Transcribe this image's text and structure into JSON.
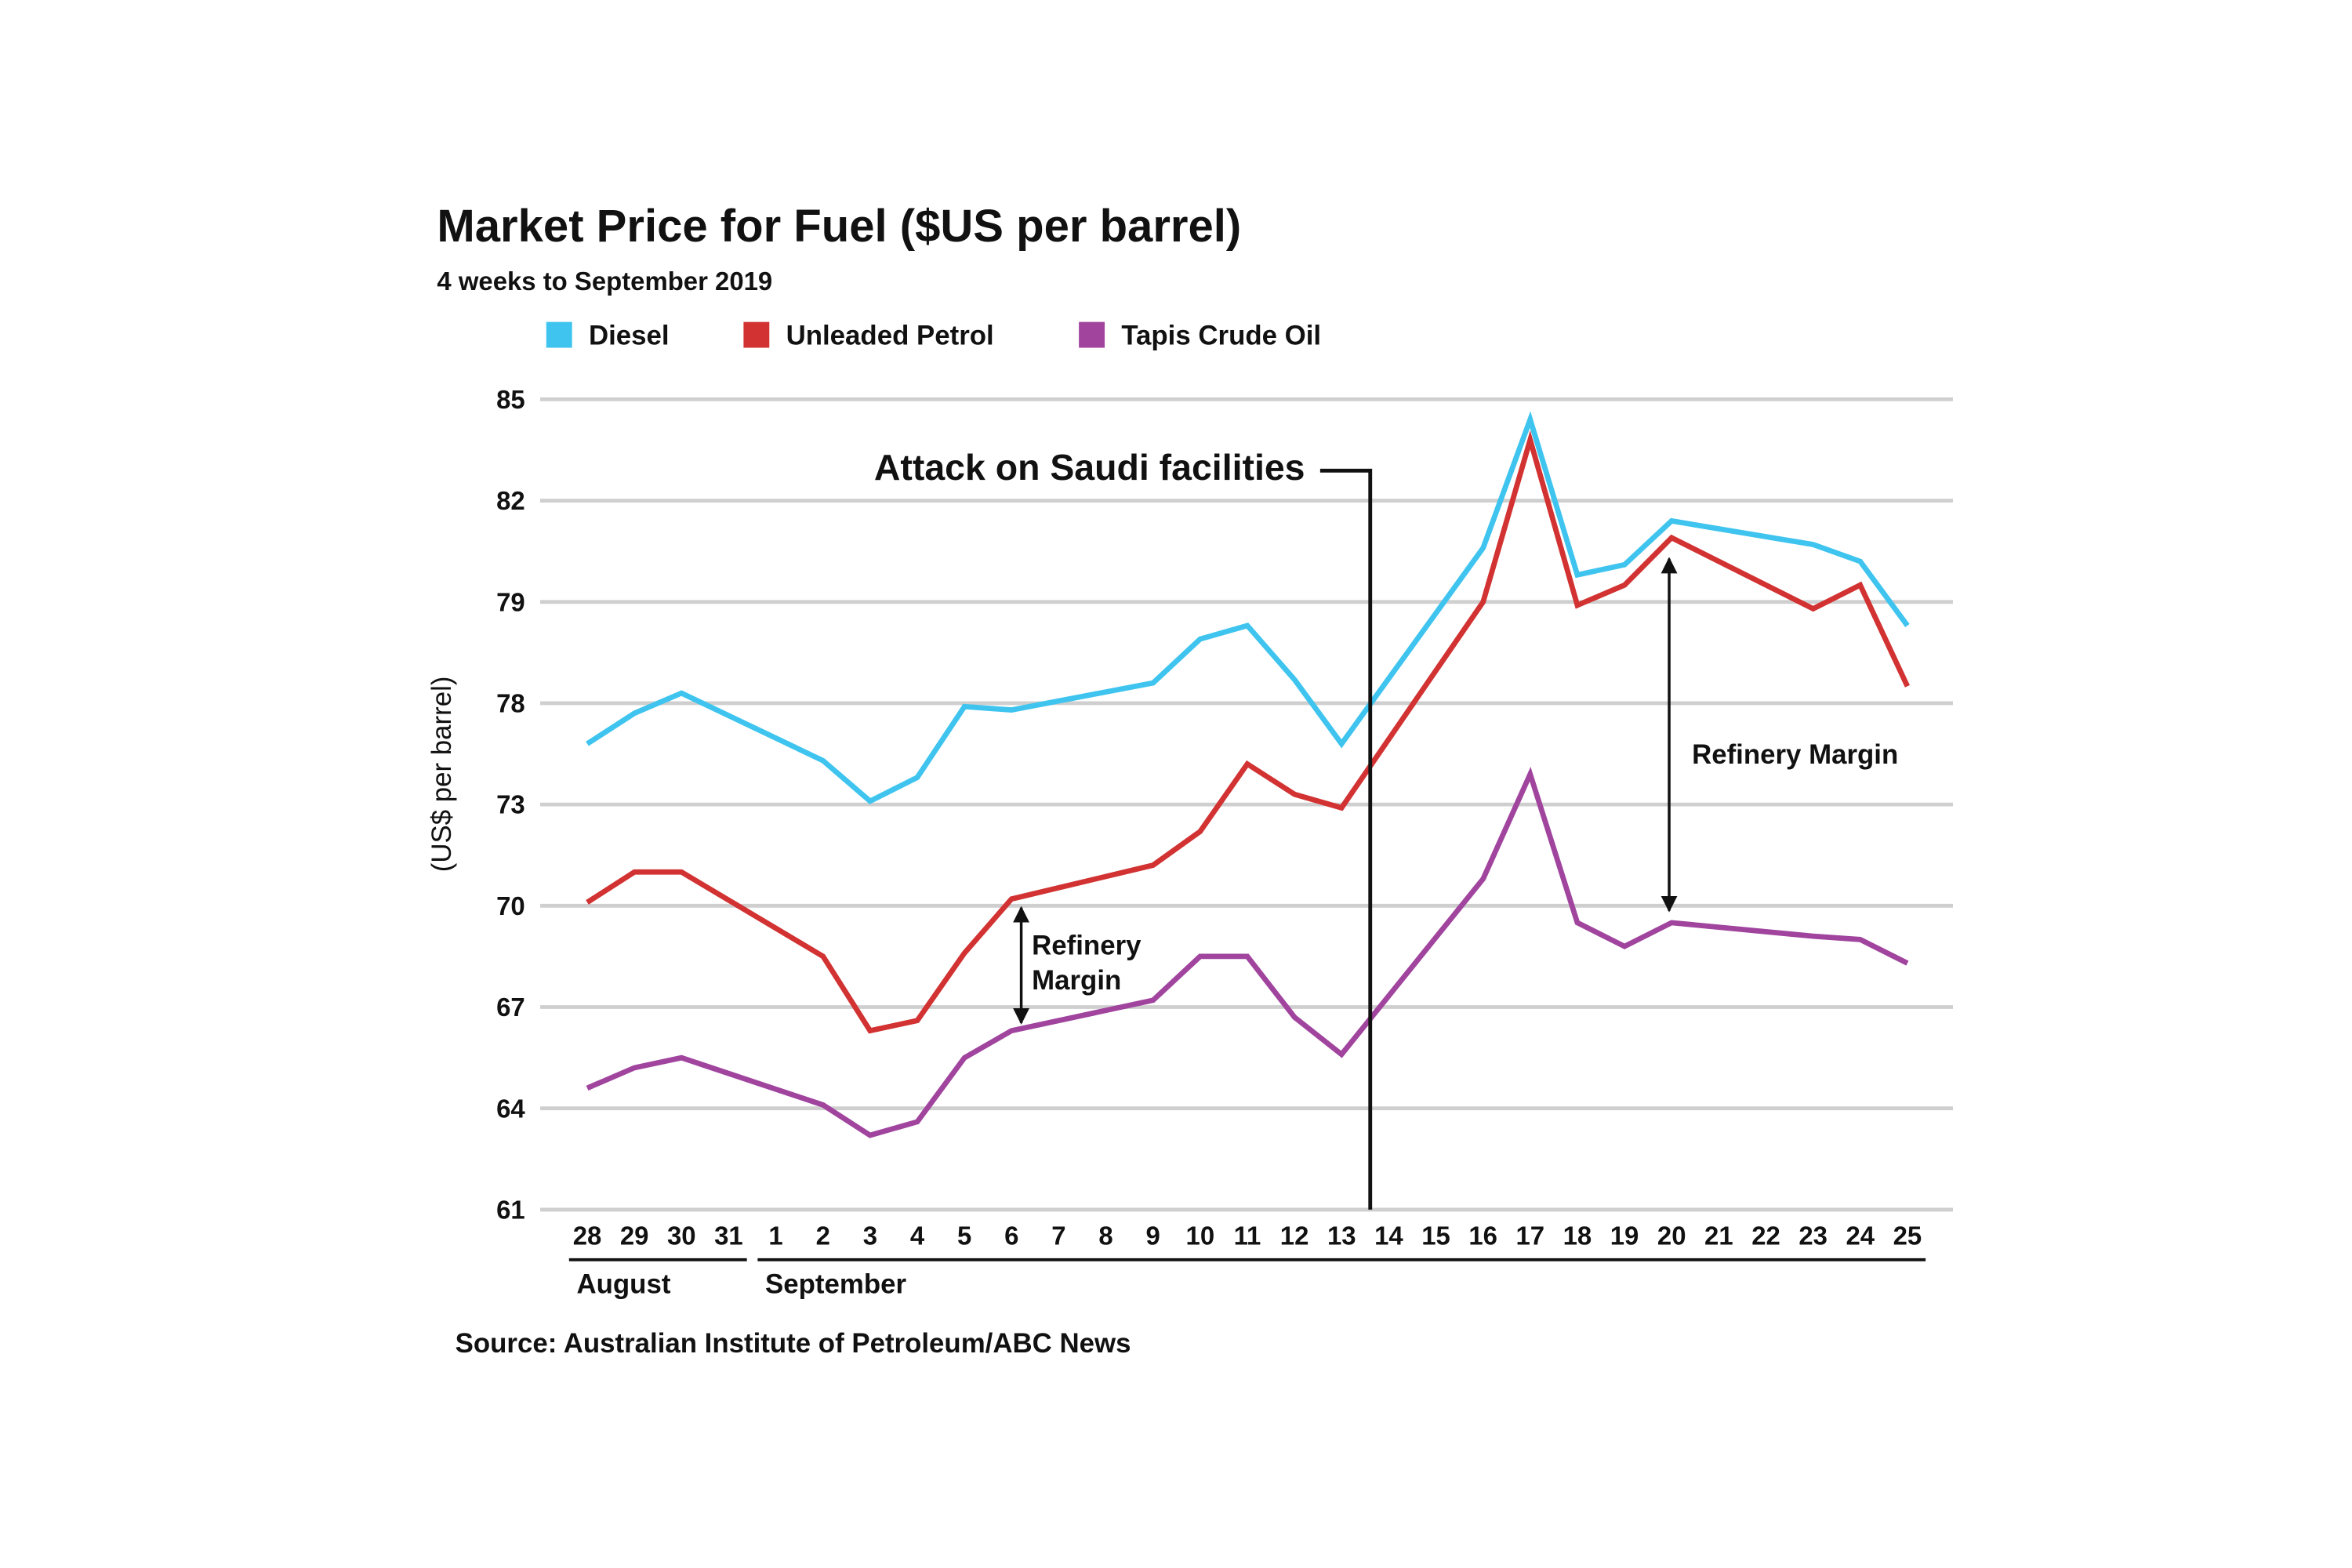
{
  "chart_data": {
    "type": "line",
    "title": "Market Price for Fuel ($US per barrel)",
    "subtitle": "4 weeks to September 2019",
    "ylabel": "(US$ per barrel)",
    "xlabel": "",
    "ylim": [
      61,
      85
    ],
    "y_ticks": [
      "85",
      "82",
      "79",
      "78",
      "73",
      "70",
      "67",
      "64",
      "61"
    ],
    "grid": true,
    "legend_position": "top-left",
    "categories": [
      "28",
      "29",
      "30",
      "31",
      "1",
      "2",
      "3",
      "4",
      "5",
      "6",
      "7",
      "8",
      "9",
      "10",
      "11",
      "12",
      "13",
      "14",
      "15",
      "16",
      "17",
      "18",
      "19",
      "20",
      "21",
      "22",
      "23",
      "24",
      "25"
    ],
    "months": [
      {
        "label": "August",
        "days": [
          "28",
          "29",
          "30",
          "31"
        ]
      },
      {
        "label": "September",
        "days": [
          "1",
          "2",
          "3",
          "4",
          "5",
          "6",
          "7",
          "8",
          "9",
          "10",
          "11",
          "12",
          "13",
          "14",
          "15",
          "16",
          "17",
          "18",
          "19",
          "20",
          "21",
          "22",
          "23",
          "24",
          "25"
        ]
      }
    ],
    "series": [
      {
        "name": "Diesel",
        "color": "#3ec4ee",
        "values": [
          74.8,
          75.7,
          76.3,
          null,
          null,
          74.3,
          73.1,
          73.8,
          75.9,
          75.8,
          null,
          null,
          76.6,
          77.9,
          78.3,
          76.7,
          74.8,
          null,
          null,
          80.6,
          84.4,
          79.8,
          80.1,
          81.4,
          null,
          null,
          80.7,
          80.2,
          78.3
        ]
      },
      {
        "name": "Unleaded Petrol",
        "color": "#d23232",
        "values": [
          70.1,
          71.0,
          71.0,
          null,
          null,
          68.5,
          66.3,
          66.6,
          68.6,
          70.2,
          null,
          null,
          71.2,
          72.2,
          74.2,
          73.3,
          72.9,
          null,
          null,
          79.0,
          83.8,
          78.9,
          79.5,
          80.9,
          null,
          null,
          78.8,
          79.5,
          76.5
        ]
      },
      {
        "name": "Tapis Crude Oil",
        "color": "#a0449e",
        "values": [
          64.6,
          65.2,
          65.5,
          null,
          null,
          64.1,
          63.2,
          63.6,
          65.5,
          66.3,
          null,
          null,
          67.2,
          68.5,
          68.5,
          66.7,
          65.6,
          null,
          null,
          70.8,
          73.9,
          69.5,
          68.8,
          69.5,
          null,
          null,
          69.1,
          69.0,
          68.3
        ]
      }
    ],
    "annotations": {
      "event": {
        "label": "Attack on Saudi facilities",
        "between": [
          "13",
          "14"
        ]
      },
      "margin_1": {
        "line1": "Refinery",
        "line2": "Margin",
        "at": "6"
      },
      "margin_2": {
        "label": "Refinery Margin",
        "at": "20"
      }
    },
    "source": "Source: Australian Institute of Petroleum/ABC News"
  }
}
